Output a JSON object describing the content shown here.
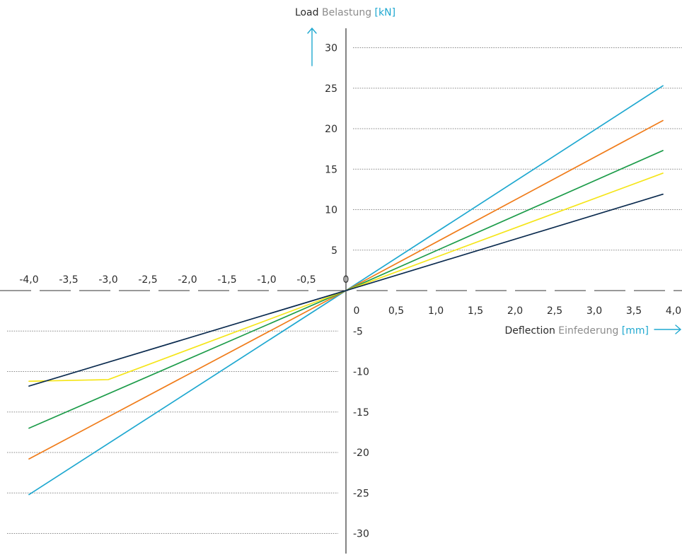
{
  "chart_data": {
    "type": "line",
    "y_title": {
      "primary": "Load",
      "secondary": "Belastung",
      "unit": "[kN]"
    },
    "x_title": {
      "primary": "Deflection",
      "secondary": "Einfederung",
      "unit": "[mm]"
    },
    "x_ticks_left": [
      "-4,0",
      "-3,5",
      "-3,0",
      "-2,5",
      "-2,0",
      "-1,5",
      "-1,0",
      "-0,5",
      "0"
    ],
    "x_ticks_right": [
      "0",
      "0,5",
      "1,0",
      "1,5",
      "2,0",
      "2,5",
      "3,0",
      "3,5",
      "4,0"
    ],
    "y_ticks_positive": [
      "30",
      "25",
      "20",
      "15",
      "10",
      "5"
    ],
    "y_ticks_negative": [
      "-5",
      "-10",
      "-15",
      "-20",
      "-25",
      "-30"
    ],
    "xlim": [
      -4,
      4
    ],
    "ylim": [
      -30,
      30
    ],
    "grid": true,
    "colors": {
      "text": "#2b2b2b",
      "secondary_text": "#8c8c8c",
      "accent": "#1fa8d0",
      "axis": "#333333",
      "grid": "#8a8a8a"
    },
    "series": [
      {
        "color": "#1fa8d0",
        "points": [
          [
            -4,
            -25.2
          ],
          [
            0,
            0
          ],
          [
            4,
            25.3
          ]
        ]
      },
      {
        "color": "#f07c1a",
        "points": [
          [
            -4,
            -20.8
          ],
          [
            0,
            0
          ],
          [
            4,
            21.0
          ]
        ]
      },
      {
        "color": "#1d9c4a",
        "points": [
          [
            -4,
            -17.0
          ],
          [
            0,
            0
          ],
          [
            4,
            17.3
          ]
        ]
      },
      {
        "color": "#f5e51a",
        "points": [
          [
            -4,
            -11.2
          ],
          [
            -3,
            -11.0
          ],
          [
            0,
            0
          ],
          [
            4,
            14.5
          ]
        ]
      },
      {
        "color": "#0b2b4f",
        "points": [
          [
            -4,
            -11.8
          ],
          [
            0,
            0
          ],
          [
            4,
            11.9
          ]
        ]
      }
    ]
  }
}
